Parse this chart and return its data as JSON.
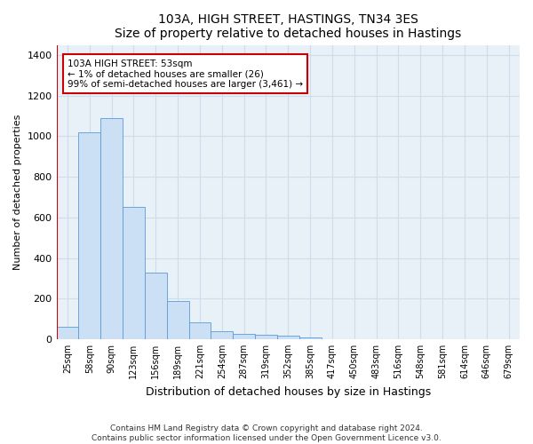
{
  "title_main": "103A, HIGH STREET, HASTINGS, TN34 3ES",
  "title_sub": "Size of property relative to detached houses in Hastings",
  "xlabel": "Distribution of detached houses by size in Hastings",
  "ylabel": "Number of detached properties",
  "categories": [
    "25sqm",
    "58sqm",
    "90sqm",
    "123sqm",
    "156sqm",
    "189sqm",
    "221sqm",
    "254sqm",
    "287sqm",
    "319sqm",
    "352sqm",
    "385sqm",
    "417sqm",
    "450sqm",
    "483sqm",
    "516sqm",
    "548sqm",
    "581sqm",
    "614sqm",
    "646sqm",
    "679sqm"
  ],
  "values": [
    60,
    1020,
    1090,
    650,
    330,
    190,
    85,
    40,
    28,
    22,
    17,
    10,
    0,
    0,
    0,
    0,
    0,
    0,
    0,
    0,
    0
  ],
  "bar_color": "#cce0f5",
  "bar_edge_color": "#5b9bd5",
  "annotation_text_line1": "103A HIGH STREET: 53sqm",
  "annotation_text_line2": "← 1% of detached houses are smaller (26)",
  "annotation_text_line3": "99% of semi-detached houses are larger (3,461) →",
  "annotation_box_color": "#ffffff",
  "annotation_box_edge_color": "#cc0000",
  "annotation_line_color": "#cc0000",
  "ylim": [
    0,
    1450
  ],
  "yticks": [
    0,
    200,
    400,
    600,
    800,
    1000,
    1200,
    1400
  ],
  "grid_color": "#d0dce8",
  "footer_line1": "Contains HM Land Registry data © Crown copyright and database right 2024.",
  "footer_line2": "Contains public sector information licensed under the Open Government Licence v3.0.",
  "background_color": "#e8f0f8"
}
